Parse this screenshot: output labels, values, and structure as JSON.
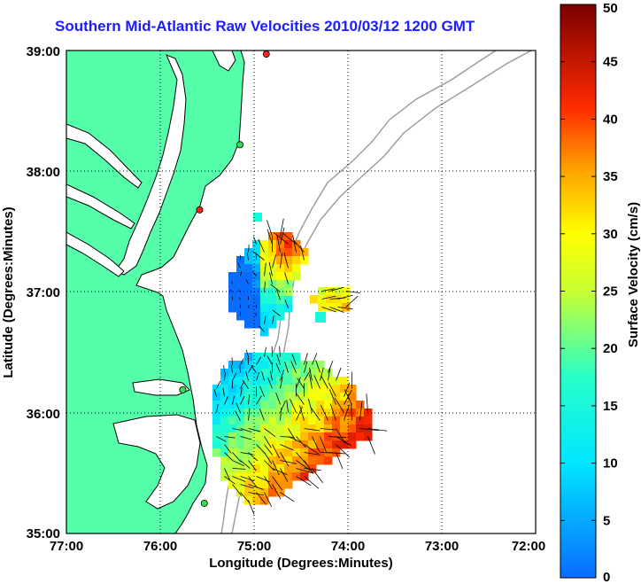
{
  "title": "Southern Mid-Atlantic Raw Velocities 2010/03/12 1200 GMT",
  "map": {
    "xlabel": "Longitude (Degrees:Minutes)",
    "ylabel": "Latitude (Degrees:Minutes)",
    "x_ticks": [
      "77:00",
      "76:00",
      "75:00",
      "74:00",
      "73:00",
      "72:00"
    ],
    "y_ticks": [
      "39:00",
      "38:00",
      "37:00",
      "36:00",
      "35:00"
    ],
    "lon_range": [
      -77,
      -72
    ],
    "lat_range": [
      35,
      39
    ],
    "land_color": "#55ffaa",
    "coast_color": "#000000",
    "bathymetry_color": "#9a9a9a",
    "grid": "dotted"
  },
  "colorbar": {
    "label": "Surface Velocity (cm/s)",
    "ticks": [
      "50",
      "45",
      "40",
      "35",
      "30",
      "25",
      "20",
      "15",
      "10",
      "5",
      "0"
    ],
    "range": [
      0,
      50
    ],
    "colormap": "jet"
  },
  "stations": [
    {
      "lon": -74.87,
      "lat": 38.97,
      "color": "#ff2020"
    },
    {
      "lon": -75.15,
      "lat": 38.22,
      "color": "#33dd55"
    },
    {
      "lon": -75.58,
      "lat": 37.68,
      "color": "#ff2020"
    },
    {
      "lon": -75.76,
      "lat": 36.19,
      "color": "#33dd55"
    },
    {
      "lon": -75.53,
      "lat": 35.25,
      "color": "#33dd55"
    }
  ]
}
